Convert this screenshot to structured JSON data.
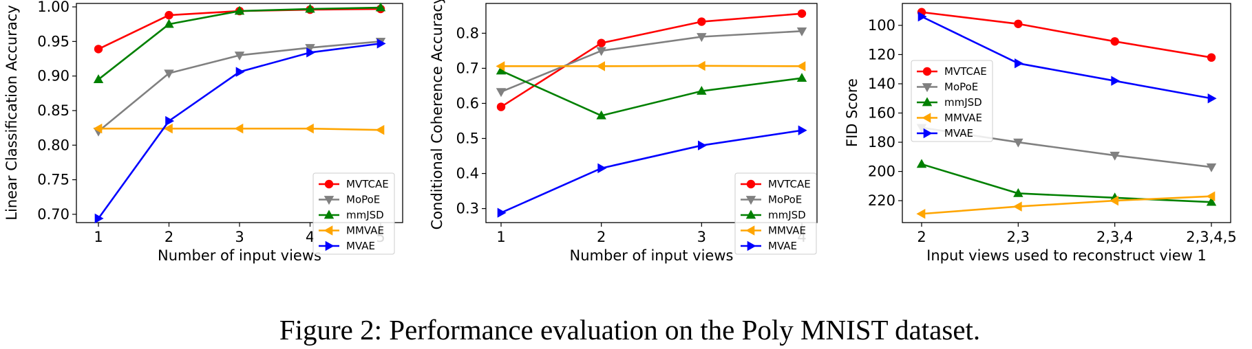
{
  "caption": "Figure 2: Performance evaluation on the Poly MNIST dataset.",
  "chart_data": [
    {
      "type": "line",
      "title": "",
      "xlabel": "Number of input views",
      "ylabel": "Linear Classification Accuracy",
      "categories": [
        "1",
        "2",
        "3",
        "4",
        "5"
      ],
      "ylim": [
        0.688,
        1.005
      ],
      "yticks": [
        0.7,
        0.75,
        0.8,
        0.85,
        0.9,
        0.95,
        1.0
      ],
      "ytick_labels": [
        "0.70",
        "0.75",
        "0.80",
        "0.85",
        "0.90",
        "0.95",
        "1.00"
      ],
      "y_inverted": false,
      "legend_position": "lower-right",
      "series": [
        {
          "name": "MVTCAE",
          "color": "#ff0000",
          "marker": "circle",
          "values": [
            0.939,
            0.988,
            0.994,
            0.996,
            0.997
          ]
        },
        {
          "name": "MoPoE",
          "color": "#808080",
          "marker": "triangle-down",
          "values": [
            0.82,
            0.904,
            0.93,
            0.941,
            0.95
          ]
        },
        {
          "name": "mmJSD",
          "color": "#008000",
          "marker": "triangle-up",
          "values": [
            0.895,
            0.975,
            0.994,
            0.997,
            0.999
          ]
        },
        {
          "name": "MMVAE",
          "color": "#ffa500",
          "marker": "triangle-left",
          "values": [
            0.824,
            0.824,
            0.824,
            0.824,
            0.822
          ]
        },
        {
          "name": "MVAE",
          "color": "#0000ff",
          "marker": "triangle-right",
          "values": [
            0.694,
            0.835,
            0.906,
            0.934,
            0.947
          ]
        }
      ]
    },
    {
      "type": "line",
      "title": "",
      "xlabel": "Number of input views",
      "ylabel": "Conditional Coherence Accuracy",
      "categories": [
        "1",
        "2",
        "3",
        "4"
      ],
      "ylim": [
        0.26,
        0.885
      ],
      "yticks": [
        0.3,
        0.4,
        0.5,
        0.6,
        0.7,
        0.8
      ],
      "ytick_labels": [
        "0.3",
        "0.4",
        "0.5",
        "0.6",
        "0.7",
        "0.8"
      ],
      "y_inverted": false,
      "legend_position": "lower-right",
      "series": [
        {
          "name": "MVTCAE",
          "color": "#ff0000",
          "marker": "circle",
          "values": [
            0.59,
            0.772,
            0.833,
            0.856
          ]
        },
        {
          "name": "MoPoE",
          "color": "#808080",
          "marker": "triangle-down",
          "values": [
            0.633,
            0.75,
            0.79,
            0.806
          ]
        },
        {
          "name": "mmJSD",
          "color": "#008000",
          "marker": "triangle-up",
          "values": [
            0.693,
            0.565,
            0.635,
            0.672
          ]
        },
        {
          "name": "MMVAE",
          "color": "#ffa500",
          "marker": "triangle-left",
          "values": [
            0.706,
            0.706,
            0.707,
            0.706
          ]
        },
        {
          "name": "MVAE",
          "color": "#0000ff",
          "marker": "triangle-right",
          "values": [
            0.288,
            0.415,
            0.48,
            0.523
          ]
        }
      ]
    },
    {
      "type": "line",
      "title": "",
      "xlabel": "Input views used to reconstruct view 1",
      "ylabel": "FID Score",
      "categories": [
        "2",
        "2,3",
        "2,3,4",
        "2,3,4,5"
      ],
      "ylim": [
        235,
        85
      ],
      "yticks": [
        100,
        120,
        140,
        160,
        180,
        200,
        220
      ],
      "ytick_labels": [
        "100",
        "120",
        "140",
        "160",
        "180",
        "200",
        "220"
      ],
      "y_inverted": true,
      "legend_position": "upper-left",
      "series": [
        {
          "name": "MVTCAE",
          "color": "#ff0000",
          "marker": "circle",
          "values": [
            91,
            99,
            111,
            122
          ]
        },
        {
          "name": "MoPoE",
          "color": "#808080",
          "marker": "triangle-down",
          "values": [
            170,
            180,
            189,
            197
          ]
        },
        {
          "name": "mmJSD",
          "color": "#008000",
          "marker": "triangle-up",
          "values": [
            195,
            215,
            218,
            221
          ]
        },
        {
          "name": "MMVAE",
          "color": "#ffa500",
          "marker": "triangle-left",
          "values": [
            229,
            224,
            220,
            217
          ]
        },
        {
          "name": "MVAE",
          "color": "#0000ff",
          "marker": "triangle-right",
          "values": [
            94,
            126,
            138,
            150
          ]
        }
      ]
    }
  ]
}
